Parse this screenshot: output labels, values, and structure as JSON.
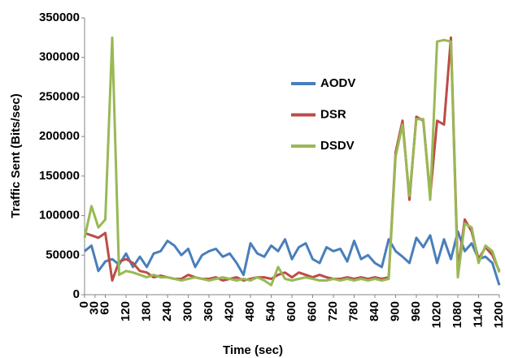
{
  "chart_data": {
    "type": "line",
    "x_label": "Time (sec)",
    "y_label": "Traffic Sent (Bits/sec)",
    "x": [
      0,
      20,
      40,
      60,
      80,
      100,
      120,
      140,
      160,
      180,
      200,
      220,
      240,
      260,
      280,
      300,
      320,
      340,
      360,
      380,
      400,
      420,
      440,
      460,
      480,
      500,
      520,
      540,
      560,
      580,
      600,
      620,
      640,
      660,
      680,
      700,
      720,
      740,
      760,
      780,
      800,
      820,
      840,
      860,
      880,
      900,
      920,
      940,
      960,
      980,
      1000,
      1020,
      1040,
      1060,
      1080,
      1100,
      1120,
      1140,
      1160,
      1180,
      1200
    ],
    "series": [
      {
        "name": "AODV",
        "color": "#4a7ebb",
        "values": [
          55000,
          62000,
          30000,
          42000,
          45000,
          38000,
          52000,
          35000,
          48000,
          35000,
          52000,
          55000,
          68000,
          62000,
          50000,
          58000,
          35000,
          50000,
          55000,
          58000,
          48000,
          52000,
          40000,
          25000,
          65000,
          52000,
          48000,
          62000,
          55000,
          70000,
          45000,
          60000,
          65000,
          45000,
          40000,
          60000,
          55000,
          58000,
          42000,
          68000,
          45000,
          50000,
          40000,
          35000,
          70000,
          55000,
          48000,
          40000,
          72000,
          60000,
          75000,
          40000,
          70000,
          45000,
          80000,
          55000,
          65000,
          45000,
          48000,
          40000,
          12000
        ]
      },
      {
        "name": "DSR",
        "color": "#be4b48",
        "values": [
          78000,
          75000,
          72000,
          78000,
          18000,
          42000,
          45000,
          40000,
          30000,
          28000,
          22000,
          24000,
          22000,
          20000,
          20000,
          25000,
          22000,
          20000,
          20000,
          22000,
          18000,
          20000,
          22000,
          18000,
          20000,
          22000,
          22000,
          20000,
          25000,
          28000,
          22000,
          28000,
          25000,
          22000,
          25000,
          22000,
          20000,
          20000,
          22000,
          20000,
          22000,
          20000,
          22000,
          20000,
          22000,
          180000,
          220000,
          120000,
          225000,
          220000,
          125000,
          220000,
          215000,
          325000,
          30000,
          95000,
          80000,
          45000,
          60000,
          50000,
          30000
        ]
      },
      {
        "name": "DSDV",
        "color": "#98b954",
        "values": [
          72000,
          112000,
          85000,
          95000,
          325000,
          25000,
          30000,
          28000,
          25000,
          22000,
          25000,
          22000,
          22000,
          20000,
          18000,
          20000,
          22000,
          20000,
          18000,
          20000,
          22000,
          20000,
          18000,
          20000,
          18000,
          22000,
          18000,
          12000,
          35000,
          20000,
          18000,
          20000,
          22000,
          20000,
          18000,
          18000,
          20000,
          18000,
          20000,
          18000,
          20000,
          18000,
          20000,
          18000,
          20000,
          175000,
          215000,
          125000,
          222000,
          222000,
          120000,
          320000,
          322000,
          320000,
          22000,
          90000,
          85000,
          40000,
          62000,
          55000,
          28000
        ]
      }
    ],
    "xlim": [
      0,
      1200
    ],
    "xticks": [
      0,
      30,
      60,
      120,
      180,
      240,
      300,
      360,
      420,
      480,
      540,
      600,
      660,
      720,
      780,
      840,
      900,
      960,
      1020,
      1080,
      1140,
      1200
    ],
    "ylim": [
      0,
      350000
    ],
    "yticks": [
      0,
      50000,
      100000,
      150000,
      200000,
      250000,
      300000,
      350000
    ],
    "grid": false,
    "legend_position": "center-right"
  }
}
